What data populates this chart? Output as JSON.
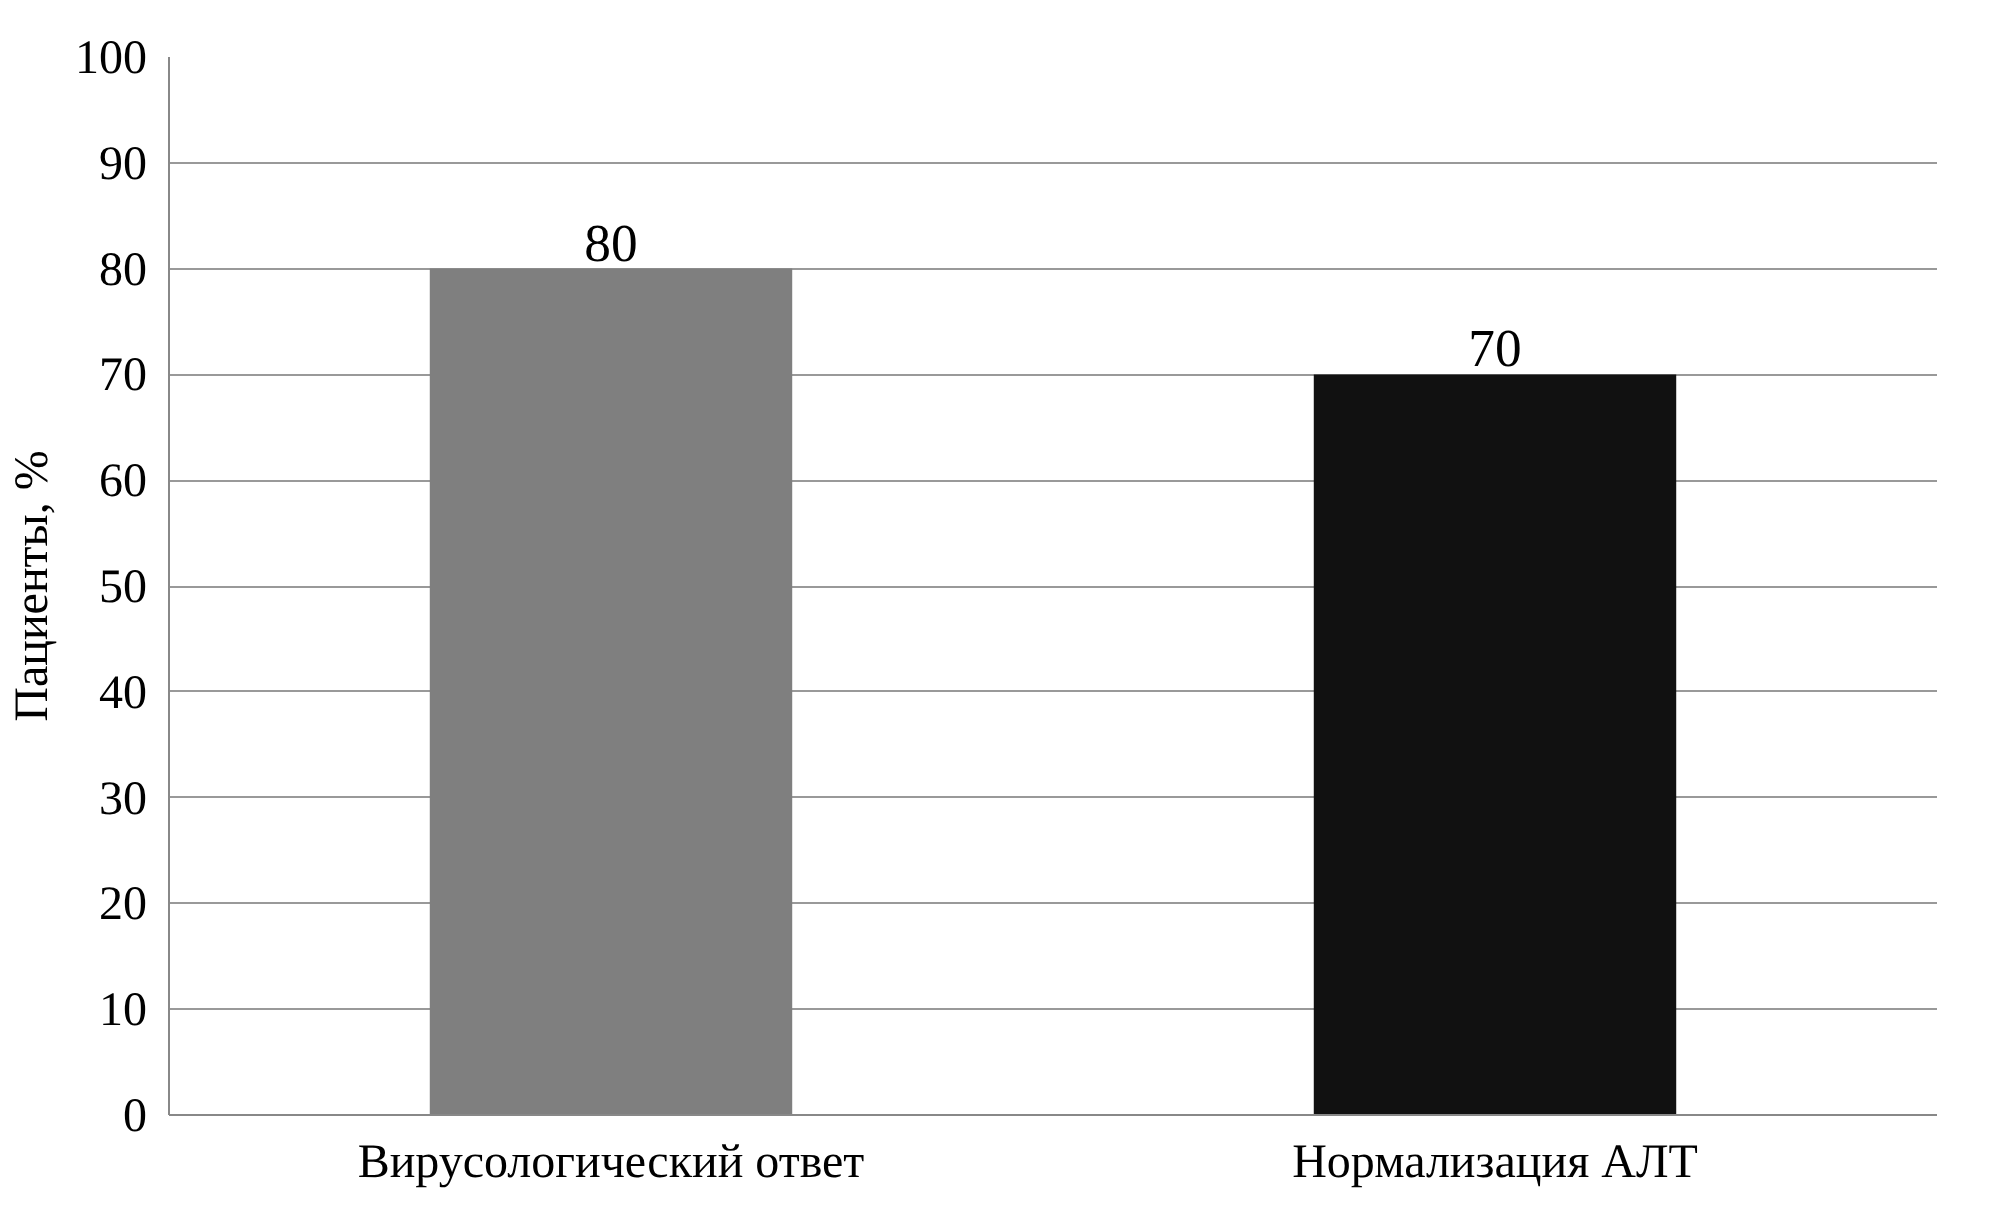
{
  "chart_data": {
    "type": "bar",
    "ylabel": "Пациенты, %",
    "categories": [
      "Вирусологический ответ",
      "Нормализация АЛТ"
    ],
    "values": [
      80,
      70
    ],
    "colors": [
      "#7f7f7f",
      "#111111"
    ],
    "ylim": [
      0,
      100
    ],
    "yticks": [
      0,
      10,
      20,
      30,
      40,
      50,
      60,
      70,
      80,
      90,
      100
    ],
    "grid": "y",
    "data_labels": true
  }
}
